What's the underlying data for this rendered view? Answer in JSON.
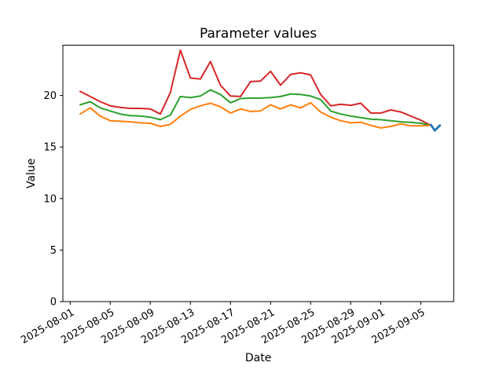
{
  "figure": {
    "title": "Parameter values",
    "xlabel": "Date",
    "ylabel": "Value"
  },
  "chart_data": {
    "type": "line",
    "title": "Parameter values",
    "xlabel": "Date",
    "ylabel": "Value",
    "ylim": [
      0,
      24.85
    ],
    "grid": false,
    "legend": null,
    "x_dates": [
      "2025-08-02",
      "2025-08-03",
      "2025-08-04",
      "2025-08-05",
      "2025-08-06",
      "2025-08-07",
      "2025-08-08",
      "2025-08-09",
      "2025-08-10",
      "2025-08-11",
      "2025-08-12",
      "2025-08-13",
      "2025-08-14",
      "2025-08-15",
      "2025-08-16",
      "2025-08-17",
      "2025-08-18",
      "2025-08-19",
      "2025-08-20",
      "2025-08-21",
      "2025-08-22",
      "2025-08-23",
      "2025-08-24",
      "2025-08-25",
      "2025-08-26",
      "2025-08-27",
      "2025-08-28",
      "2025-08-29",
      "2025-08-30",
      "2025-08-31",
      "2025-09-01",
      "2025-09-02",
      "2025-09-03",
      "2025-09-04",
      "2025-09-05",
      "2025-09-06"
    ],
    "x_tick_labels": [
      "2025-08-01",
      "2025-08-05",
      "2025-08-09",
      "2025-08-13",
      "2025-08-17",
      "2025-08-21",
      "2025-08-25",
      "2025-08-29",
      "2025-09-01",
      "2025-09-05"
    ],
    "x_tick_day_offsets": [
      -1,
      3,
      7,
      11,
      15,
      19,
      23,
      27,
      30,
      34
    ],
    "y_ticks": [
      0,
      5,
      10,
      15,
      20
    ],
    "series": [
      {
        "name": "red",
        "color": "#d62728",
        "values": [
          20.4,
          19.9,
          19.4,
          19.0,
          18.85,
          18.75,
          18.75,
          18.7,
          18.2,
          20.3,
          24.4,
          21.7,
          21.6,
          23.3,
          21.0,
          19.95,
          19.9,
          21.35,
          21.4,
          22.35,
          21.0,
          22.05,
          22.2,
          22.0,
          20.1,
          19.0,
          19.15,
          19.05,
          19.25,
          18.3,
          18.3,
          18.6,
          18.4,
          18.0,
          17.6,
          17.1
        ]
      },
      {
        "name": "green",
        "color": "#2ca02c",
        "values": [
          19.1,
          19.4,
          18.8,
          18.5,
          18.2,
          18.05,
          18.0,
          17.9,
          17.65,
          18.1,
          19.9,
          19.8,
          19.95,
          20.55,
          20.1,
          19.3,
          19.7,
          19.75,
          19.75,
          19.8,
          19.9,
          20.15,
          20.1,
          19.95,
          19.6,
          18.5,
          18.2,
          18.0,
          17.85,
          17.7,
          17.65,
          17.55,
          17.45,
          17.4,
          17.3,
          17.1
        ]
      },
      {
        "name": "orange",
        "color": "#ff7f0e",
        "values": [
          18.2,
          18.8,
          18.0,
          17.55,
          17.5,
          17.45,
          17.35,
          17.3,
          17.0,
          17.2,
          18.0,
          18.65,
          19.0,
          19.25,
          18.9,
          18.3,
          18.7,
          18.45,
          18.5,
          19.1,
          18.7,
          19.1,
          18.8,
          19.3,
          18.4,
          17.9,
          17.55,
          17.35,
          17.4,
          17.1,
          16.85,
          17.0,
          17.25,
          17.05,
          17.05,
          17.1
        ]
      },
      {
        "name": "blue",
        "color": "#1f77b4",
        "x_day_offsets": [
          35.0,
          35.4,
          35.9
        ],
        "values": [
          17.15,
          16.6,
          17.1
        ]
      }
    ]
  }
}
